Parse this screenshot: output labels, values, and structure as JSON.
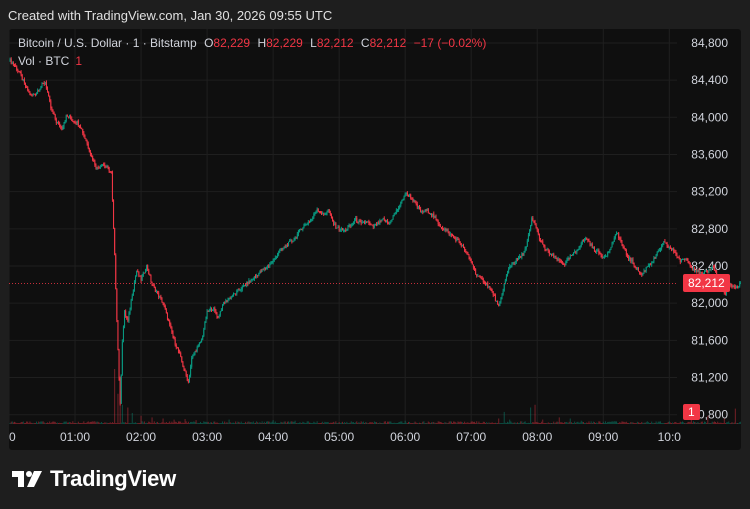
{
  "header": {
    "created": "Created with TradingView.com, Jan 30, 2026 09:55 UTC"
  },
  "legend": {
    "symbol": "Bitcoin / U.S. Dollar · 1 · Bitstamp",
    "o_label": "O",
    "o_value": "82,229",
    "h_label": "H",
    "h_value": "82,229",
    "l_label": "L",
    "l_value": "82,212",
    "c_label": "C",
    "c_value": "82,212",
    "change": "−17 (−0.02%)",
    "vol_label": "Vol · BTC",
    "vol_value": "1"
  },
  "price_tag": "82,212",
  "vol_tag": "1",
  "brand": {
    "name": "TradingView"
  },
  "colors": {
    "up": "#089981",
    "down": "#f23645",
    "grid": "#1f1f1f",
    "axis_text": "#d1d4dc"
  },
  "chart_data": {
    "type": "candlestick",
    "y_ticks": [
      "84,800",
      "84,400",
      "84,000",
      "83,600",
      "83,200",
      "82,800",
      "82,400",
      "82,000",
      "81,600",
      "81,200",
      "80,800"
    ],
    "x_ticks": [
      "0",
      "01:00",
      "02:00",
      "03:00",
      "04:00",
      "05:00",
      "06:00",
      "07:00",
      "08:00",
      "09:00",
      "10:0"
    ],
    "ylim": [
      80700,
      84950
    ],
    "x_range_minutes": [
      0,
      607
    ],
    "last_price": 82212,
    "price_path": [
      [
        0,
        84620
      ],
      [
        5,
        84560
      ],
      [
        10,
        84470
      ],
      [
        15,
        84330
      ],
      [
        20,
        84230
      ],
      [
        25,
        84270
      ],
      [
        30,
        84350
      ],
      [
        33,
        84380
      ],
      [
        38,
        84100
      ],
      [
        43,
        83950
      ],
      [
        48,
        83880
      ],
      [
        52,
        84010
      ],
      [
        55,
        84000
      ],
      [
        58,
        83960
      ],
      [
        62,
        83950
      ],
      [
        65,
        83900
      ],
      [
        70,
        83750
      ],
      [
        75,
        83580
      ],
      [
        80,
        83450
      ],
      [
        85,
        83500
      ],
      [
        90,
        83450
      ],
      [
        93,
        83400
      ],
      [
        96,
        82500
      ],
      [
        99,
        81500
      ],
      [
        101,
        80900
      ],
      [
        103,
        81600
      ],
      [
        105,
        81900
      ],
      [
        108,
        81800
      ],
      [
        112,
        82100
      ],
      [
        116,
        82350
      ],
      [
        120,
        82250
      ],
      [
        125,
        82400
      ],
      [
        130,
        82200
      ],
      [
        135,
        82100
      ],
      [
        140,
        82000
      ],
      [
        145,
        81800
      ],
      [
        150,
        81600
      ],
      [
        155,
        81450
      ],
      [
        160,
        81250
      ],
      [
        163,
        81150
      ],
      [
        166,
        81400
      ],
      [
        170,
        81500
      ],
      [
        175,
        81600
      ],
      [
        180,
        81900
      ],
      [
        185,
        81950
      ],
      [
        190,
        81850
      ],
      [
        195,
        82000
      ],
      [
        200,
        82050
      ],
      [
        205,
        82100
      ],
      [
        210,
        82150
      ],
      [
        215,
        82200
      ],
      [
        220,
        82250
      ],
      [
        225,
        82300
      ],
      [
        230,
        82350
      ],
      [
        235,
        82400
      ],
      [
        240,
        82450
      ],
      [
        245,
        82550
      ],
      [
        250,
        82600
      ],
      [
        255,
        82650
      ],
      [
        260,
        82700
      ],
      [
        265,
        82800
      ],
      [
        270,
        82850
      ],
      [
        275,
        82900
      ],
      [
        280,
        83020
      ],
      [
        285,
        82950
      ],
      [
        290,
        83000
      ],
      [
        295,
        82850
      ],
      [
        300,
        82800
      ],
      [
        305,
        82780
      ],
      [
        310,
        82830
      ],
      [
        315,
        82900
      ],
      [
        320,
        82850
      ],
      [
        325,
        82880
      ],
      [
        330,
        82820
      ],
      [
        335,
        82850
      ],
      [
        340,
        82900
      ],
      [
        345,
        82850
      ],
      [
        350,
        82950
      ],
      [
        355,
        83050
      ],
      [
        360,
        83180
      ],
      [
        365,
        83150
      ],
      [
        370,
        83050
      ],
      [
        375,
        82980
      ],
      [
        380,
        83000
      ],
      [
        385,
        82950
      ],
      [
        390,
        82850
      ],
      [
        395,
        82800
      ],
      [
        400,
        82750
      ],
      [
        405,
        82700
      ],
      [
        410,
        82650
      ],
      [
        415,
        82550
      ],
      [
        420,
        82450
      ],
      [
        425,
        82300
      ],
      [
        430,
        82250
      ],
      [
        435,
        82200
      ],
      [
        440,
        82100
      ],
      [
        445,
        81950
      ],
      [
        450,
        82200
      ],
      [
        455,
        82400
      ],
      [
        460,
        82450
      ],
      [
        465,
        82500
      ],
      [
        470,
        82600
      ],
      [
        475,
        82900
      ],
      [
        478,
        82850
      ],
      [
        482,
        82700
      ],
      [
        486,
        82600
      ],
      [
        490,
        82550
      ],
      [
        495,
        82500
      ],
      [
        500,
        82450
      ],
      [
        505,
        82420
      ],
      [
        510,
        82500
      ],
      [
        515,
        82550
      ],
      [
        520,
        82650
      ],
      [
        525,
        82700
      ],
      [
        530,
        82600
      ],
      [
        535,
        82550
      ],
      [
        540,
        82500
      ],
      [
        545,
        82550
      ],
      [
        550,
        82700
      ],
      [
        553,
        82750
      ],
      [
        558,
        82600
      ],
      [
        562,
        82500
      ],
      [
        566,
        82450
      ],
      [
        570,
        82380
      ],
      [
        575,
        82300
      ],
      [
        580,
        82400
      ],
      [
        585,
        82450
      ],
      [
        590,
        82550
      ],
      [
        595,
        82650
      ],
      [
        600,
        82600
      ],
      [
        605,
        82550
      ],
      [
        610,
        82450
      ],
      [
        615,
        82480
      ],
      [
        620,
        82400
      ],
      [
        625,
        82350
      ],
      [
        630,
        82300
      ],
      [
        635,
        82350
      ],
      [
        640,
        82400
      ],
      [
        645,
        82250
      ],
      [
        650,
        82100
      ],
      [
        655,
        82200
      ],
      [
        660,
        82150
      ],
      [
        665,
        82229
      ],
      [
        668,
        82212
      ]
    ],
    "volume_spikes": [
      [
        96,
        1.0
      ],
      [
        99,
        0.55
      ],
      [
        101,
        0.6
      ],
      [
        103,
        0.35
      ],
      [
        108,
        0.3
      ],
      [
        112,
        0.2
      ],
      [
        120,
        0.15
      ],
      [
        130,
        0.12
      ],
      [
        140,
        0.1
      ],
      [
        150,
        0.08
      ],
      [
        160,
        0.09
      ],
      [
        170,
        0.07
      ],
      [
        200,
        0.08
      ],
      [
        240,
        0.07
      ],
      [
        260,
        0.06
      ],
      [
        280,
        0.05
      ],
      [
        360,
        0.06
      ],
      [
        425,
        0.05
      ],
      [
        445,
        0.1
      ],
      [
        450,
        0.22
      ],
      [
        455,
        0.08
      ],
      [
        474,
        0.3
      ],
      [
        478,
        0.35
      ],
      [
        485,
        0.08
      ],
      [
        500,
        0.12
      ],
      [
        510,
        0.1
      ],
      [
        520,
        0.06
      ],
      [
        550,
        0.05
      ],
      [
        580,
        0.05
      ],
      [
        620,
        0.08
      ],
      [
        635,
        0.15
      ],
      [
        650,
        0.1
      ],
      [
        660,
        0.28
      ]
    ]
  }
}
